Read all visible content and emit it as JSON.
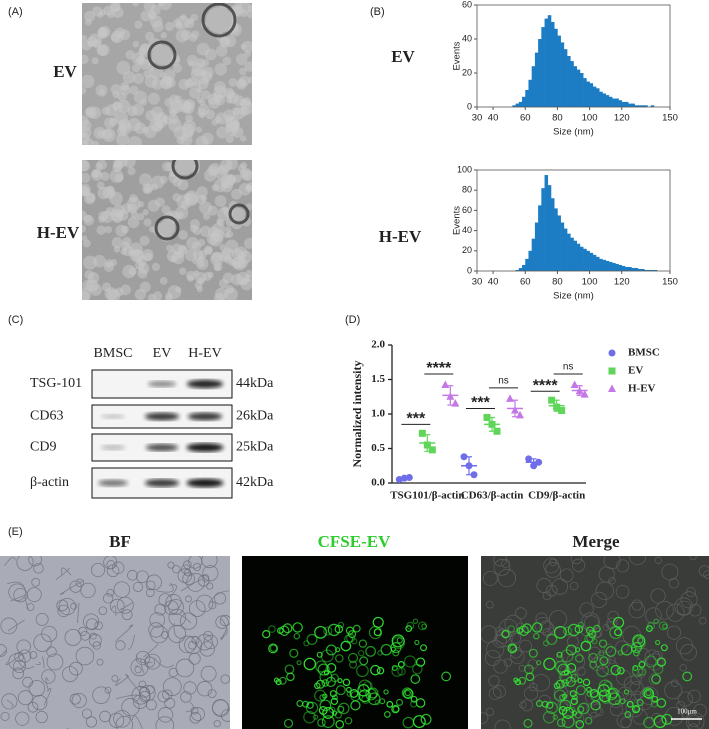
{
  "panel_labels": [
    "(A)",
    "(B)",
    "(C)",
    "(D)",
    "(E)"
  ],
  "tem": {
    "labels": [
      "EV",
      "H-EV"
    ]
  },
  "chart_data": [
    {
      "type": "histogram",
      "label": "EV",
      "xlabel": "Size (nm)",
      "ylabel": "Events",
      "color": "#1c7cc4",
      "bins": [
        30,
        32,
        34,
        36,
        38,
        40,
        42,
        44,
        46,
        48,
        50,
        52,
        54,
        56,
        58,
        60,
        62,
        64,
        66,
        68,
        70,
        72,
        74,
        76,
        78,
        80,
        82,
        84,
        86,
        88,
        90,
        92,
        94,
        96,
        98,
        100,
        102,
        104,
        106,
        108,
        110,
        112,
        114,
        116,
        118,
        120,
        122,
        124,
        126,
        128,
        130,
        132,
        134,
        136,
        138,
        140,
        142,
        144,
        146,
        148,
        150
      ],
      "counts": [
        0,
        0,
        0,
        0,
        0,
        0,
        0,
        0,
        0,
        0,
        0,
        1,
        2,
        3,
        6,
        10,
        16,
        24,
        32,
        40,
        47,
        52,
        54,
        50,
        46,
        42,
        38,
        34,
        30,
        27,
        24,
        22,
        20,
        17,
        15,
        14,
        12,
        11,
        9,
        8,
        7,
        6,
        5,
        5,
        4,
        3,
        3,
        2,
        2,
        1,
        1,
        1,
        1,
        0,
        1,
        0,
        0,
        0,
        0,
        0
      ],
      "xlim": [
        30,
        150
      ],
      "xticks": [
        30,
        40,
        60,
        80,
        100,
        120,
        150
      ],
      "ylim": [
        0,
        60
      ],
      "yticks": [
        0,
        20,
        40,
        60
      ]
    },
    {
      "type": "histogram",
      "label": "H-EV",
      "xlabel": "Size (nm)",
      "ylabel": "Events",
      "color": "#1c7cc4",
      "bins": [
        30,
        32,
        34,
        36,
        38,
        40,
        42,
        44,
        46,
        48,
        50,
        52,
        54,
        56,
        58,
        60,
        62,
        64,
        66,
        68,
        70,
        72,
        74,
        76,
        78,
        80,
        82,
        84,
        86,
        88,
        90,
        92,
        94,
        96,
        98,
        100,
        102,
        104,
        106,
        108,
        110,
        112,
        114,
        116,
        118,
        120,
        122,
        124,
        126,
        128,
        130,
        132,
        134,
        136,
        138,
        140,
        142,
        144,
        146,
        148,
        150
      ],
      "counts": [
        0,
        0,
        0,
        0,
        0,
        0,
        0,
        0,
        0,
        0,
        0,
        0,
        1,
        3,
        6,
        12,
        20,
        32,
        48,
        65,
        82,
        95,
        85,
        72,
        62,
        55,
        48,
        42,
        37,
        33,
        30,
        27,
        24,
        22,
        20,
        18,
        16,
        14,
        12,
        11,
        10,
        9,
        8,
        7,
        6,
        5,
        4,
        4,
        3,
        3,
        2,
        2,
        1,
        1,
        1,
        1,
        0,
        0,
        0,
        0
      ],
      "xlim": [
        30,
        150
      ],
      "xticks": [
        30,
        40,
        60,
        80,
        100,
        120,
        150
      ],
      "ylim": [
        0,
        100
      ],
      "yticks": [
        0,
        20,
        40,
        60,
        80,
        100
      ]
    },
    {
      "type": "dotplot",
      "ylabel": "Normalized intensity",
      "categories": [
        "TSG101/β-actin",
        "CD63/β-actin",
        "CD9/β-actin"
      ],
      "ylim": [
        0,
        2
      ],
      "yticks": [
        {
          "value": 0,
          "label": "0.0"
        },
        0.5,
        {
          "value": 1,
          "label": "1.0"
        },
        1.5,
        {
          "value": 2,
          "label": "2.0"
        }
      ],
      "series": [
        {
          "name": "BMSC",
          "color": "#6f6ee8",
          "marker": "circle",
          "values": [
            [
              0.05,
              0.07,
              0.08
            ],
            [
              0.38,
              0.25,
              0.12
            ],
            [
              0.35,
              0.25,
              0.3
            ]
          ],
          "mean": [
            0.07,
            0.25,
            0.3
          ],
          "sd": [
            0.02,
            0.13,
            0.05
          ]
        },
        {
          "name": "EV",
          "color": "#5fd65a",
          "marker": "square",
          "values": [
            [
              0.72,
              0.55,
              0.48
            ],
            [
              0.95,
              0.85,
              0.75
            ],
            [
              1.2,
              1.1,
              1.05
            ]
          ],
          "mean": [
            0.58,
            0.85,
            1.12
          ],
          "sd": [
            0.12,
            0.1,
            0.08
          ]
        },
        {
          "name": "H-EV",
          "color": "#c477e6",
          "marker": "triangle",
          "values": [
            [
              1.42,
              1.25,
              1.15
            ],
            [
              1.22,
              1.05,
              0.98
            ],
            [
              1.42,
              1.33,
              1.28
            ]
          ],
          "mean": [
            1.27,
            1.08,
            1.34
          ],
          "sd": [
            0.14,
            0.12,
            0.07
          ]
        }
      ],
      "significance": [
        [
          "***",
          "****"
        ],
        [
          "***",
          "ns"
        ],
        [
          "****",
          "ns"
        ]
      ],
      "legend": "right"
    }
  ],
  "blot": {
    "columns": [
      "BMSC",
      "EV",
      "H-EV"
    ],
    "rows": [
      "TSG-101",
      "CD63",
      "CD9",
      "β-actin"
    ],
    "sizes": [
      "44kDa",
      "26kDa",
      "25kDa",
      "42kDa"
    ]
  },
  "fluorescence": {
    "titles": [
      "BF",
      "CFSE-EV",
      "Merge"
    ],
    "scale_bar": "100μm"
  }
}
